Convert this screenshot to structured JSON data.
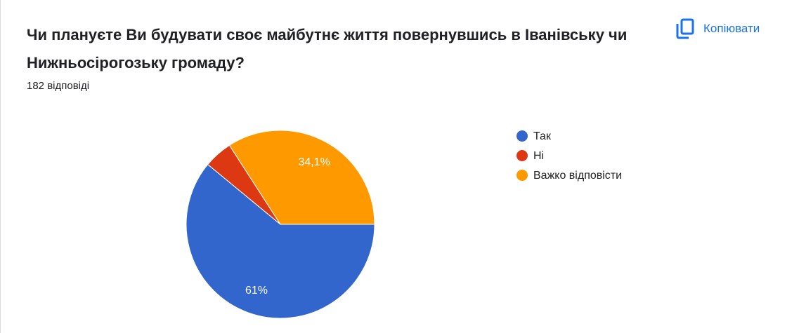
{
  "chart_data": {
    "type": "pie",
    "title": "Чи плануєте Ви будувати своє майбутнє життя повернувшись в Іванівську чи Нижньосірогозьку громаду?",
    "subtitle": "182 відповіді",
    "copy_button": "Копіювати",
    "categories": [
      "Так",
      "Ні",
      "Важко відповісти"
    ],
    "values": [
      61,
      4.9,
      34.1
    ],
    "value_labels": [
      "61%",
      null,
      "34,1%"
    ],
    "colors": [
      "#3366cc",
      "#dc3912",
      "#ff9900"
    ],
    "legend": "right"
  }
}
